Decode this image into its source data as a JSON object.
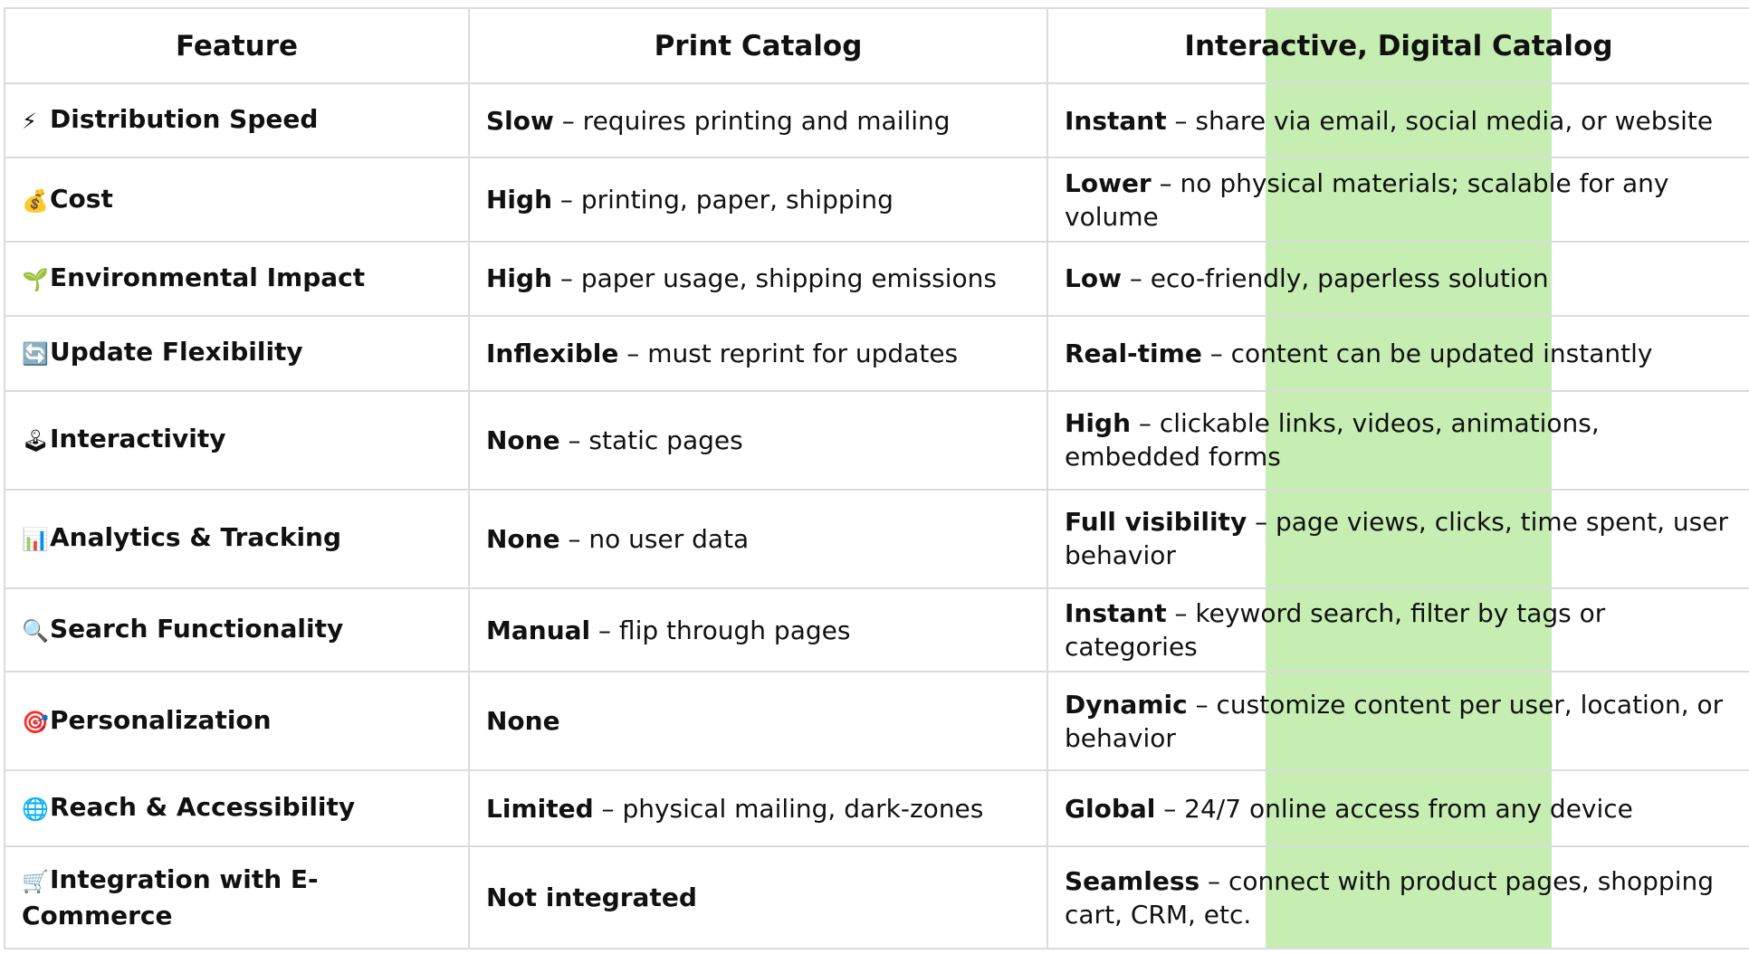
{
  "headers": {
    "feature": "Feature",
    "print": "Print Catalog",
    "digital": "Interactive, Digital Catalog"
  },
  "colors": {
    "highlight": "#c6eeb3",
    "border": "#dcdcdc"
  },
  "rows": [
    {
      "icon": "⚡",
      "icon_name": "lightning-icon",
      "feature": "Distribution Speed",
      "print_bold": "Slow",
      "print_text": " – requires printing and mailing",
      "digital_bold": "Instant",
      "digital_text": " – share via email, social media, or website"
    },
    {
      "icon": "💰",
      "icon_name": "money-bag-icon",
      "feature": "Cost",
      "print_bold": "High",
      "print_text": " – printing, paper, shipping",
      "digital_bold": "Lower",
      "digital_text": " – no physical materials; scalable for any volume"
    },
    {
      "icon": "🌱",
      "icon_name": "seedling-icon",
      "feature": "Environmental Impact",
      "print_bold": "High",
      "print_text": " – paper usage, shipping emissions",
      "digital_bold": "Low",
      "digital_text": " – eco-friendly, paperless solution"
    },
    {
      "icon": "🔄",
      "icon_name": "refresh-icon",
      "feature": "Update Flexibility",
      "print_bold": "Inflexible",
      "print_text": " – must reprint for updates",
      "digital_bold": "Real-time",
      "digital_text": " – content can be updated instantly"
    },
    {
      "icon": "🕹",
      "icon_name": "joystick-icon",
      "feature": "Interactivity",
      "print_bold": "None",
      "print_text": " – static pages",
      "digital_bold": "High",
      "digital_text": " – clickable links, videos, animations, embedded forms"
    },
    {
      "icon": "📊",
      "icon_name": "bar-chart-icon",
      "feature": "Analytics & Tracking",
      "print_bold": "None",
      "print_text": " – no user data",
      "digital_bold": "Full visibility",
      "digital_text": " – page views, clicks, time spent, user behavior"
    },
    {
      "icon": "🔍",
      "icon_name": "magnifier-icon",
      "feature": "Search Functionality",
      "print_bold": "Manual",
      "print_text": " – flip through pages",
      "digital_bold": "Instant",
      "digital_text": " – keyword search, filter by tags or categories"
    },
    {
      "icon": "🎯",
      "icon_name": "target-icon",
      "feature": "Personalization",
      "print_bold": "None",
      "print_text": "",
      "digital_bold": "Dynamic",
      "digital_text": " – customize content per user, location, or behavior"
    },
    {
      "icon": "🌐",
      "icon_name": "globe-icon",
      "feature": "Reach & Accessibility",
      "print_bold": "Limited",
      "print_text": " – physical mailing, dark-zones",
      "digital_bold": "Global",
      "digital_text": " – 24/7 online access from any device"
    },
    {
      "icon": "🛒",
      "icon_name": "shopping-cart-icon",
      "feature": "Integration with E-Commerce",
      "print_bold": "Not integrated",
      "print_text": "",
      "digital_bold": "Seamless",
      "digital_text": " – connect with product pages, shopping cart, CRM, etc."
    }
  ]
}
